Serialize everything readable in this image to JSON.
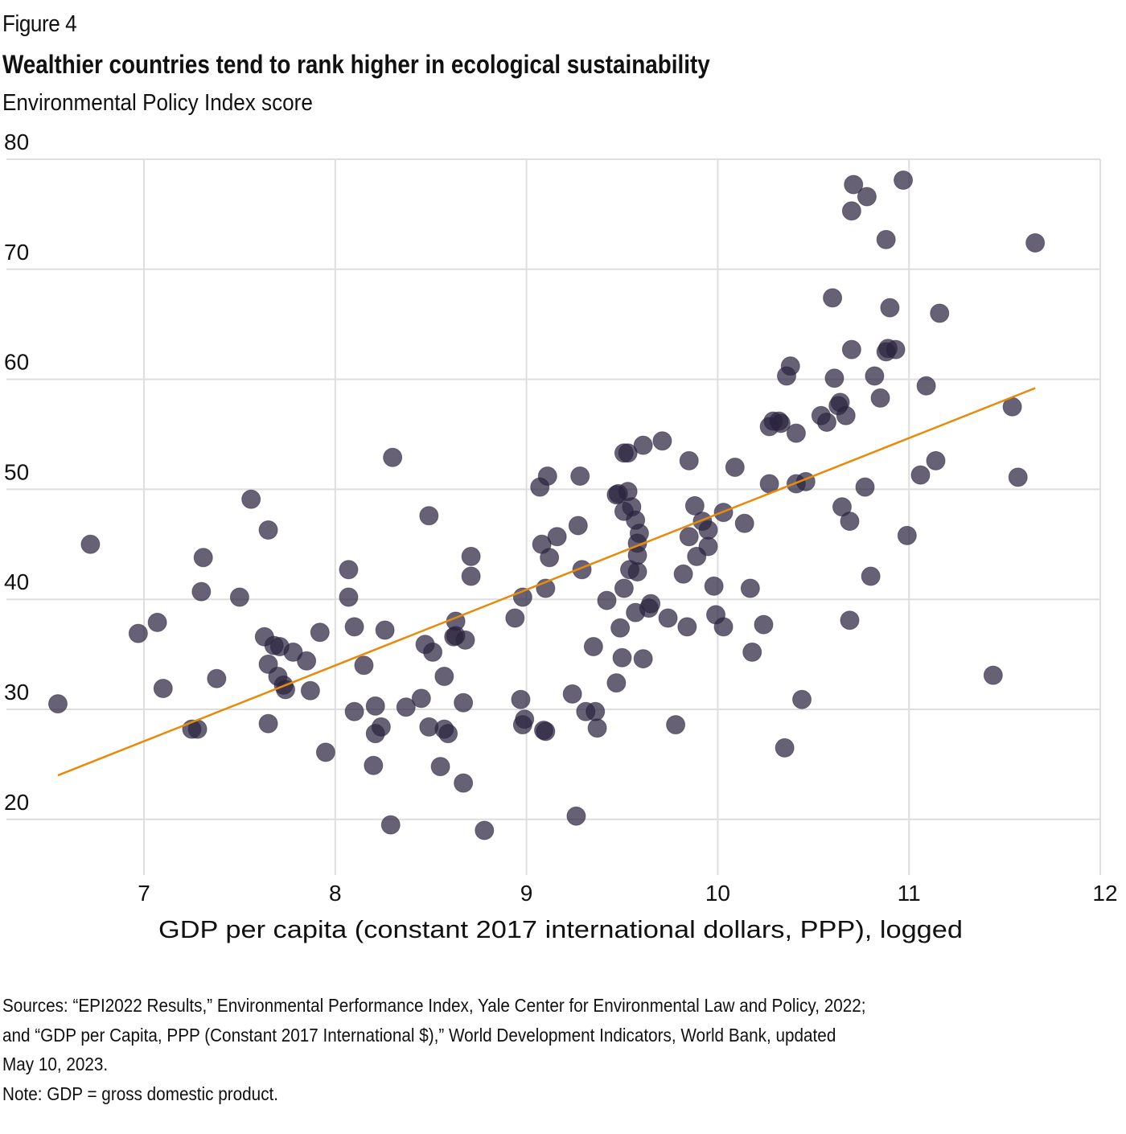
{
  "figure_label": "Figure 4",
  "colors": {
    "point": "#2b2440",
    "trend": "#e88a0c",
    "grid": "#dedede"
  },
  "footer": {
    "sources_line1": "Sources: “EPI2022 Results,” Environmental Performance Index, Yale Center for Environmental Law and Policy, 2022;",
    "sources_line2": "and “GDP per Capita, PPP (Constant 2017 International $),” World Development Indicators, World Bank, updated",
    "sources_line3": "May 10, 2023.",
    "note": "Note: GDP = gross domestic product."
  },
  "chart_data": {
    "type": "scatter",
    "title": "Wealthier countries tend to rank higher in ecological sustainability",
    "subtitle": "Environmental Policy Index score",
    "xlabel": "GDP per capita (constant 2017 international dollars, PPP), logged",
    "ylabel": "Environmental Policy Index score",
    "xlim": [
      6.45,
      12
    ],
    "ylim": [
      15,
      80
    ],
    "xticks": [
      7,
      8,
      9,
      10,
      11,
      12
    ],
    "yticks": [
      20,
      30,
      40,
      50,
      60,
      70,
      80
    ],
    "grid": true,
    "legend": "none",
    "trendline": {
      "x": [
        6.55,
        11.66
      ],
      "y": [
        24.0,
        59.2
      ]
    },
    "points": [
      [
        6.55,
        30.5
      ],
      [
        6.72,
        45.0
      ],
      [
        6.97,
        36.9
      ],
      [
        7.07,
        37.9
      ],
      [
        7.1,
        31.9
      ],
      [
        7.25,
        28.2
      ],
      [
        7.28,
        28.2
      ],
      [
        7.31,
        43.8
      ],
      [
        7.3,
        40.7
      ],
      [
        7.38,
        32.8
      ],
      [
        7.5,
        40.2
      ],
      [
        7.56,
        49.1
      ],
      [
        7.65,
        46.3
      ],
      [
        7.63,
        36.6
      ],
      [
        7.65,
        34.1
      ],
      [
        7.65,
        28.7
      ],
      [
        7.68,
        35.8
      ],
      [
        7.71,
        35.7
      ],
      [
        7.7,
        33.0
      ],
      [
        7.73,
        32.2
      ],
      [
        7.74,
        31.8
      ],
      [
        7.78,
        35.2
      ],
      [
        7.85,
        34.4
      ],
      [
        7.87,
        31.7
      ],
      [
        7.92,
        37.0
      ],
      [
        7.95,
        26.1
      ],
      [
        8.07,
        42.7
      ],
      [
        8.07,
        40.2
      ],
      [
        8.1,
        37.5
      ],
      [
        8.1,
        29.8
      ],
      [
        8.15,
        34.0
      ],
      [
        8.21,
        30.3
      ],
      [
        8.21,
        27.8
      ],
      [
        8.24,
        28.4
      ],
      [
        8.2,
        24.9
      ],
      [
        8.26,
        37.2
      ],
      [
        8.3,
        52.9
      ],
      [
        8.29,
        19.5
      ],
      [
        8.37,
        30.2
      ],
      [
        8.45,
        31.0
      ],
      [
        8.47,
        35.9
      ],
      [
        8.49,
        47.6
      ],
      [
        8.49,
        28.4
      ],
      [
        8.51,
        35.2
      ],
      [
        8.55,
        24.8
      ],
      [
        8.57,
        33.0
      ],
      [
        8.57,
        28.2
      ],
      [
        8.59,
        27.8
      ],
      [
        8.63,
        38.0
      ],
      [
        8.62,
        36.6
      ],
      [
        8.63,
        36.7
      ],
      [
        8.68,
        36.3
      ],
      [
        8.67,
        30.6
      ],
      [
        8.67,
        23.3
      ],
      [
        8.71,
        43.9
      ],
      [
        8.71,
        42.1
      ],
      [
        8.78,
        19.0
      ],
      [
        8.94,
        38.3
      ],
      [
        8.97,
        30.9
      ],
      [
        8.98,
        40.2
      ],
      [
        8.99,
        29.1
      ],
      [
        8.98,
        28.6
      ],
      [
        9.07,
        50.2
      ],
      [
        9.08,
        45.0
      ],
      [
        9.11,
        51.2
      ],
      [
        9.1,
        41.0
      ],
      [
        9.12,
        43.8
      ],
      [
        9.09,
        28.1
      ],
      [
        9.1,
        28.0
      ],
      [
        9.16,
        45.7
      ],
      [
        9.24,
        31.4
      ],
      [
        9.27,
        46.7
      ],
      [
        9.28,
        51.2
      ],
      [
        9.29,
        42.7
      ],
      [
        9.26,
        20.3
      ],
      [
        9.31,
        29.8
      ],
      [
        9.35,
        35.7
      ],
      [
        9.36,
        29.8
      ],
      [
        9.37,
        28.3
      ],
      [
        9.42,
        39.9
      ],
      [
        9.47,
        32.4
      ],
      [
        9.47,
        49.5
      ],
      [
        9.48,
        49.6
      ],
      [
        9.49,
        37.4
      ],
      [
        9.5,
        34.7
      ],
      [
        9.51,
        53.3
      ],
      [
        9.53,
        53.3
      ],
      [
        9.51,
        41.0
      ],
      [
        9.53,
        49.8
      ],
      [
        9.51,
        48.0
      ],
      [
        9.55,
        48.4
      ],
      [
        9.54,
        42.7
      ],
      [
        9.57,
        47.2
      ],
      [
        9.57,
        38.8
      ],
      [
        9.58,
        45.1
      ],
      [
        9.59,
        46.0
      ],
      [
        9.58,
        44.0
      ],
      [
        9.58,
        42.5
      ],
      [
        9.61,
        54.0
      ],
      [
        9.61,
        34.6
      ],
      [
        9.64,
        39.2
      ],
      [
        9.65,
        39.6
      ],
      [
        9.71,
        54.4
      ],
      [
        9.74,
        38.3
      ],
      [
        9.78,
        28.6
      ],
      [
        9.82,
        42.3
      ],
      [
        9.84,
        37.5
      ],
      [
        9.85,
        52.6
      ],
      [
        9.85,
        45.7
      ],
      [
        9.88,
        48.5
      ],
      [
        9.89,
        43.9
      ],
      [
        9.92,
        47.1
      ],
      [
        9.95,
        44.8
      ],
      [
        9.95,
        46.3
      ],
      [
        9.98,
        41.2
      ],
      [
        9.99,
        38.6
      ],
      [
        10.03,
        37.5
      ],
      [
        10.03,
        47.9
      ],
      [
        10.09,
        52.0
      ],
      [
        10.14,
        46.9
      ],
      [
        10.17,
        41.0
      ],
      [
        10.18,
        35.2
      ],
      [
        10.24,
        37.7
      ],
      [
        10.27,
        50.5
      ],
      [
        10.27,
        55.7
      ],
      [
        10.29,
        56.2
      ],
      [
        10.32,
        56.2
      ],
      [
        10.33,
        56.0
      ],
      [
        10.35,
        26.5
      ],
      [
        10.36,
        60.3
      ],
      [
        10.38,
        61.2
      ],
      [
        10.41,
        55.1
      ],
      [
        10.41,
        50.5
      ],
      [
        10.46,
        50.7
      ],
      [
        10.44,
        30.9
      ],
      [
        10.54,
        56.7
      ],
      [
        10.57,
        56.1
      ],
      [
        10.6,
        67.4
      ],
      [
        10.61,
        60.1
      ],
      [
        10.63,
        57.6
      ],
      [
        10.64,
        57.9
      ],
      [
        10.65,
        48.4
      ],
      [
        10.67,
        56.7
      ],
      [
        10.69,
        47.1
      ],
      [
        10.69,
        38.1
      ],
      [
        10.7,
        75.3
      ],
      [
        10.71,
        77.7
      ],
      [
        10.7,
        62.7
      ],
      [
        10.78,
        76.6
      ],
      [
        10.77,
        50.2
      ],
      [
        10.8,
        42.1
      ],
      [
        10.82,
        60.3
      ],
      [
        10.85,
        58.3
      ],
      [
        10.88,
        62.5
      ],
      [
        10.89,
        62.8
      ],
      [
        10.88,
        72.7
      ],
      [
        10.9,
        66.5
      ],
      [
        10.93,
        62.7
      ],
      [
        10.97,
        78.1
      ],
      [
        10.99,
        45.8
      ],
      [
        11.06,
        51.3
      ],
      [
        11.09,
        59.4
      ],
      [
        11.14,
        52.6
      ],
      [
        11.16,
        66.0
      ],
      [
        11.44,
        33.1
      ],
      [
        11.54,
        57.5
      ],
      [
        11.57,
        51.1
      ],
      [
        11.66,
        72.4
      ]
    ]
  }
}
